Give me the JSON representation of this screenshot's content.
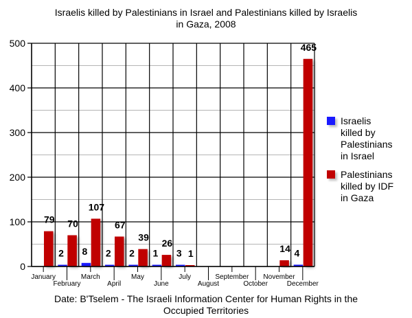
{
  "title_line1": "Israelis killed by Palestinians in Israel and Palestinians killed by Israelis",
  "title_line2": "in Gaza, 2008",
  "footer_line1": "Date: B'Tselem - The Israeli Information Center for Human Rights in the",
  "footer_line2": "Occupied Territories",
  "legend": [
    {
      "label": "Israelis killed by Palestinians in Israel",
      "lines": [
        "Israelis",
        "killed by",
        "Palestinians",
        "in Israel"
      ],
      "color": "#1a1aff"
    },
    {
      "label": "Palestinians killed by IDF in Gaza",
      "lines": [
        "Palestinians",
        "killed by IDF",
        "in Gaza"
      ],
      "color": "#c00000"
    }
  ],
  "chart_data": {
    "type": "bar",
    "title": "Israelis killed by Palestinians in Israel and Palestinians killed by Israelis in Gaza, 2008",
    "xlabel": "",
    "ylabel": "",
    "ylim": [
      0,
      500
    ],
    "yticks": [
      0,
      100,
      200,
      300,
      400,
      500
    ],
    "grid": true,
    "legend_position": "right",
    "categories": [
      "January",
      "February",
      "March",
      "April",
      "May",
      "June",
      "July",
      "August",
      "September",
      "October",
      "November",
      "December"
    ],
    "series": [
      {
        "name": "Israelis killed by Palestinians in Israel",
        "color": "#1a1aff",
        "values": [
          0,
          2,
          8,
          2,
          2,
          1,
          3,
          0,
          0,
          0,
          0,
          4
        ],
        "labels": [
          "",
          "2",
          "8",
          "2",
          "2",
          "1",
          "3",
          "",
          "",
          "",
          "",
          "4"
        ]
      },
      {
        "name": "Palestinians killed by IDF in Gaza",
        "color": "#c00000",
        "values": [
          79,
          70,
          107,
          67,
          39,
          26,
          1,
          0,
          0,
          0,
          14,
          465
        ],
        "labels": [
          "79",
          "70",
          "107",
          "67",
          "39",
          "26",
          "1",
          "",
          "",
          "",
          "14",
          "465"
        ]
      }
    ],
    "source": "Date: B'Tselem - The Israeli Information Center for Human Rights in the Occupied Territories"
  }
}
